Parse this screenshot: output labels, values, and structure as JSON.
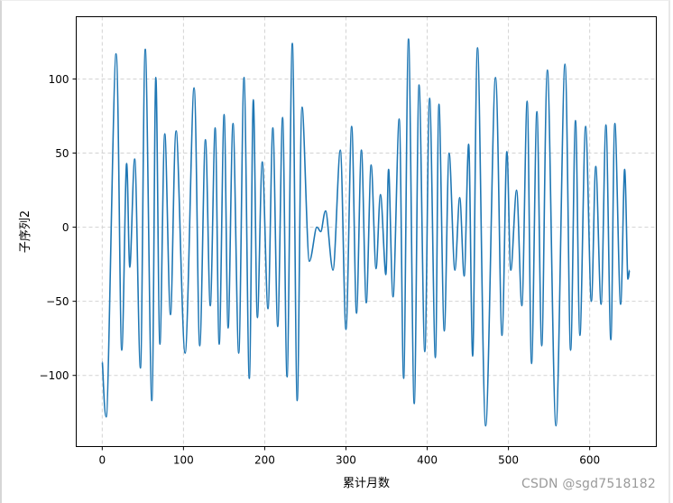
{
  "chart_data": {
    "type": "line",
    "title": "",
    "xlabel": "累计月数",
    "ylabel": "子序列2",
    "xlim": [
      -32,
      682
    ],
    "ylim": [
      -148,
      142
    ],
    "xticks": [
      0,
      100,
      200,
      300,
      400,
      500,
      600
    ],
    "yticks": [
      -100,
      -50,
      0,
      50,
      100
    ],
    "grid": true,
    "grid_style": "dashed",
    "legend": null,
    "series": [
      {
        "name": "子序列2",
        "color": "#1f77b4",
        "x": [
          0,
          5,
          17,
          24,
          30,
          34,
          40,
          47,
          53,
          61,
          66,
          71,
          77,
          84,
          91,
          102,
          113,
          120,
          127,
          133,
          139,
          144,
          150,
          155,
          161,
          168,
          174.5,
          181,
          186,
          191,
          197,
          204,
          210,
          216,
          222,
          227.5,
          234,
          240,
          246,
          255,
          264,
          269,
          275,
          284,
          293,
          300,
          307,
          313,
          319,
          325,
          331,
          337,
          342.5,
          349,
          352.5,
          358,
          365.5,
          371,
          377,
          384,
          390,
          397,
          403,
          410,
          414.5,
          421,
          427,
          434,
          440,
          445.5,
          451,
          456,
          462,
          472,
          484,
          492,
          498,
          503,
          510,
          516.5,
          523,
          528.5,
          535,
          541,
          548,
          558.5,
          569.5,
          576.5,
          582.5,
          588,
          595,
          602,
          607.5,
          614,
          620,
          626,
          631,
          638,
          643,
          647,
          649
        ],
        "values": [
          -91,
          -128,
          117,
          -83,
          43,
          -27,
          46,
          -95,
          120,
          -117,
          101,
          -79,
          63,
          -59,
          65,
          -85,
          94,
          -80,
          59,
          -53,
          67,
          -79,
          76,
          -68,
          70,
          -85,
          101,
          -102,
          86,
          -61,
          44,
          -55,
          67,
          -67,
          74,
          -101,
          124,
          -117,
          81,
          -23,
          0,
          -3,
          11,
          -29,
          52,
          -69,
          68,
          -58,
          52,
          -51,
          42,
          -28,
          22,
          -32,
          39,
          -47,
          73,
          -102,
          127,
          -119,
          96,
          -84,
          87,
          -88,
          83,
          -70,
          50,
          -29,
          20,
          -33,
          56,
          -87,
          121,
          -134,
          101,
          -73,
          51,
          -29,
          25,
          -53,
          85,
          -92,
          78,
          -80,
          106,
          -134,
          110,
          -83,
          72,
          -73,
          68,
          -50,
          41,
          -52,
          69,
          -76,
          70,
          -52,
          39,
          -35,
          -29
        ]
      }
    ]
  },
  "watermark": "CSDN @sgd7518182"
}
